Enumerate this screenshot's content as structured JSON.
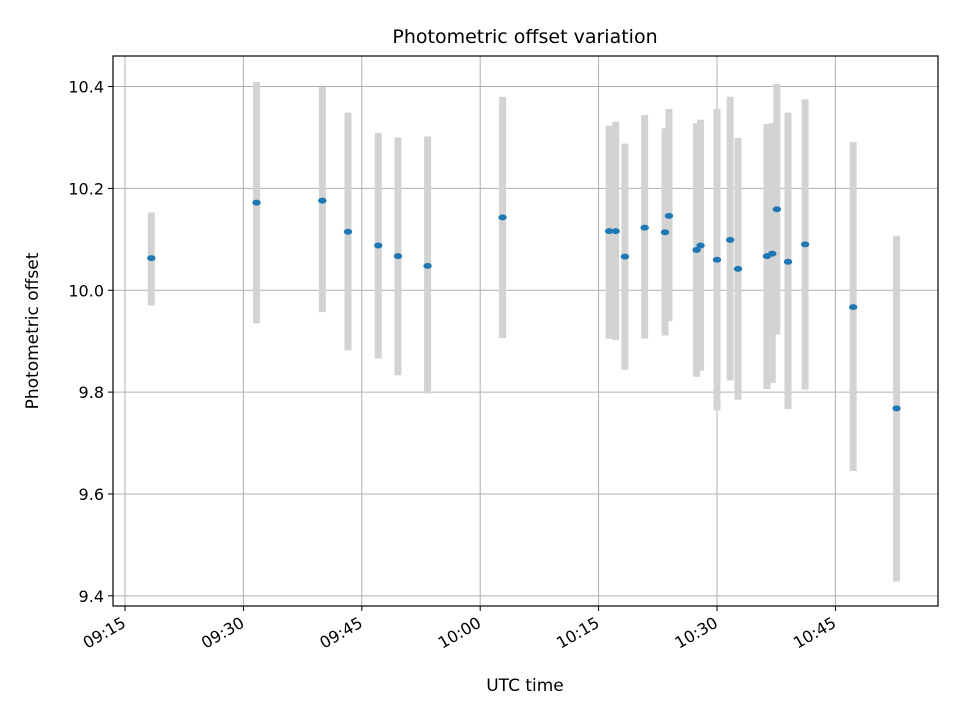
{
  "chart_data": {
    "type": "scatter",
    "title": "Photometric offset variation",
    "xlabel": "UTC time",
    "ylabel": "Photometric offset",
    "x_ticks": [
      "09:15",
      "09:30",
      "09:45",
      "10:00",
      "10:15",
      "10:30",
      "10:45"
    ],
    "y_ticks": [
      "9.4",
      "9.6",
      "9.8",
      "10.0",
      "10.2",
      "10.4"
    ],
    "xlim": [
      "09:15",
      "10:58"
    ],
    "ylim": [
      9.38,
      10.46
    ],
    "grid": true,
    "marker_color": "#1f77b4",
    "errorbar_color": "#d3d3d3",
    "points": [
      {
        "t": "09:18:20",
        "y": 10.063,
        "lo": 9.97,
        "hi": 10.153
      },
      {
        "t": "09:31:40",
        "y": 10.172,
        "lo": 9.935,
        "hi": 10.409
      },
      {
        "t": "09:40:00",
        "y": 10.176,
        "lo": 9.957,
        "hi": 10.399
      },
      {
        "t": "09:43:15",
        "y": 10.115,
        "lo": 9.882,
        "hi": 10.349
      },
      {
        "t": "09:47:05",
        "y": 10.088,
        "lo": 9.866,
        "hi": 10.309
      },
      {
        "t": "09:49:35",
        "y": 10.067,
        "lo": 9.833,
        "hi": 10.3
      },
      {
        "t": "09:53:20",
        "y": 10.048,
        "lo": 9.797,
        "hi": 10.302
      },
      {
        "t": "10:02:50",
        "y": 10.143,
        "lo": 9.906,
        "hi": 10.38
      },
      {
        "t": "10:16:20",
        "y": 10.116,
        "lo": 9.905,
        "hi": 10.323
      },
      {
        "t": "10:17:10",
        "y": 10.116,
        "lo": 9.902,
        "hi": 10.331
      },
      {
        "t": "10:18:20",
        "y": 10.066,
        "lo": 9.844,
        "hi": 10.288
      },
      {
        "t": "10:20:50",
        "y": 10.123,
        "lo": 9.905,
        "hi": 10.344
      },
      {
        "t": "10:23:25",
        "y": 10.114,
        "lo": 9.911,
        "hi": 10.318
      },
      {
        "t": "10:23:55",
        "y": 10.146,
        "lo": 9.939,
        "hi": 10.356
      },
      {
        "t": "10:27:25",
        "y": 10.079,
        "lo": 9.83,
        "hi": 10.328
      },
      {
        "t": "10:27:55",
        "y": 10.088,
        "lo": 9.842,
        "hi": 10.335
      },
      {
        "t": "10:30:00",
        "y": 10.06,
        "lo": 9.764,
        "hi": 10.356
      },
      {
        "t": "10:31:40",
        "y": 10.099,
        "lo": 9.823,
        "hi": 10.38
      },
      {
        "t": "10:32:40",
        "y": 10.042,
        "lo": 9.785,
        "hi": 10.299
      },
      {
        "t": "10:36:20",
        "y": 10.067,
        "lo": 9.806,
        "hi": 10.326
      },
      {
        "t": "10:37:00",
        "y": 10.072,
        "lo": 9.818,
        "hi": 10.328
      },
      {
        "t": "10:37:35",
        "y": 10.159,
        "lo": 9.913,
        "hi": 10.405
      },
      {
        "t": "10:39:00",
        "y": 10.056,
        "lo": 9.767,
        "hi": 10.349
      },
      {
        "t": "10:41:10",
        "y": 10.09,
        "lo": 9.805,
        "hi": 10.375
      },
      {
        "t": "10:47:15",
        "y": 9.967,
        "lo": 9.645,
        "hi": 10.291
      },
      {
        "t": "10:52:45",
        "y": 9.768,
        "lo": 9.428,
        "hi": 10.107
      }
    ]
  }
}
